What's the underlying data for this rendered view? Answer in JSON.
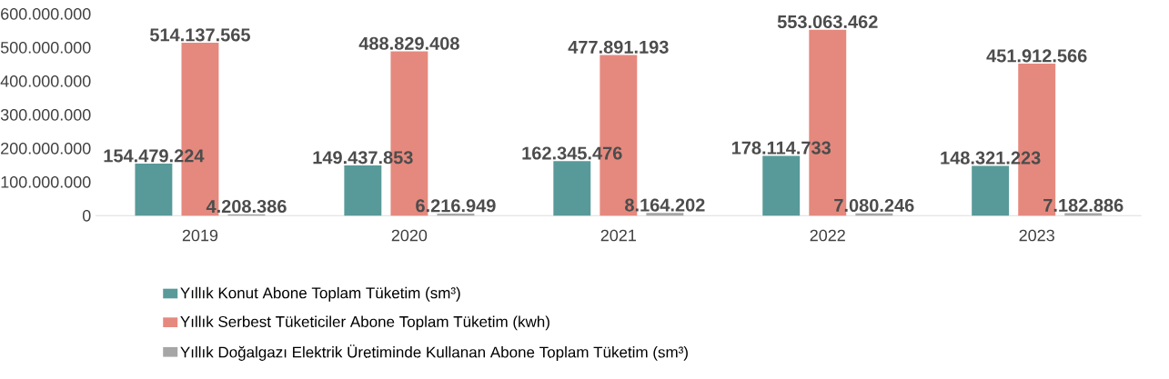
{
  "chart_data": {
    "type": "bar",
    "categories": [
      "2019",
      "2020",
      "2021",
      "2022",
      "2023"
    ],
    "series": [
      {
        "name": "Yıllık Konut Abone Toplam Tüketim (sm³)",
        "color": "#589a99",
        "values": [
          154479224,
          149437853,
          162345476,
          178114733,
          148321223
        ],
        "value_labels": [
          "154.479.224",
          "149.437.853",
          "162.345.476",
          "178.114.733",
          "148.321.223"
        ]
      },
      {
        "name": "Yıllık Serbest Tüketiciler Abone Toplam Tüketim (kwh)",
        "color": "#e5897e",
        "values": [
          514137565,
          488829408,
          477891193,
          553063462,
          451912566
        ],
        "value_labels": [
          "514.137.565",
          "488.829.408",
          "477.891.193",
          "553.063.462",
          "451.912.566"
        ]
      },
      {
        "name": "Yıllık Doğalgazı Elektrik Üretiminde Kullanan Abone Toplam Tüketim (sm³)",
        "color": "#a6a6a6",
        "values": [
          4208386,
          6216949,
          8164202,
          7080246,
          7182886
        ],
        "value_labels": [
          "4.208.386",
          "6.216.949",
          "8.164.202",
          "7.080.246",
          "7.182.886"
        ]
      }
    ],
    "ylim": [
      0,
      600000000
    ],
    "yticks": [
      0,
      {
        "value": 100000000,
        "label": "100.000.000"
      },
      {
        "value": 200000000,
        "label": "200.000.000"
      },
      {
        "value": 300000000,
        "label": "300.000.000"
      },
      {
        "value": 400000000,
        "label": "400.000.000"
      },
      {
        "value": 500000000,
        "label": "500.000.000"
      },
      {
        "value": 600000000,
        "label": "600.000.000"
      }
    ],
    "legend": "bottom"
  }
}
